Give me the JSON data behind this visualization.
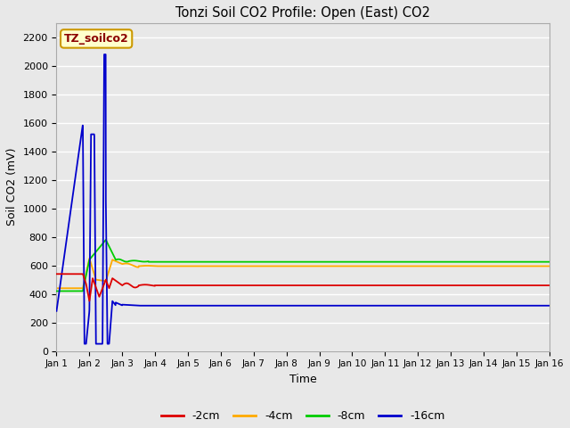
{
  "title": "Tonzi Soil CO2 Profile: Open (East) CO2",
  "xlabel": "Time",
  "ylabel": "Soil CO2 (mV)",
  "ylim": [
    0,
    2300
  ],
  "yticks": [
    0,
    200,
    400,
    600,
    800,
    1000,
    1200,
    1400,
    1600,
    1800,
    2000,
    2200
  ],
  "bg_color": "#e8e8e8",
  "grid_color": "#ffffff",
  "watermark_text": "TZ_soilco2",
  "watermark_bg": "#ffffcc",
  "watermark_border": "#cc9900",
  "series": {
    "2cm": {
      "color": "#dd0000",
      "label": "-2cm"
    },
    "4cm": {
      "color": "#ffaa00",
      "label": "-4cm"
    },
    "8cm": {
      "color": "#00cc00",
      "label": "-8cm"
    },
    "16cm": {
      "color": "#0000cc",
      "label": "-16cm"
    }
  },
  "steady_2cm": 460,
  "steady_4cm": 595,
  "steady_8cm": 625,
  "steady_16cm": 318
}
